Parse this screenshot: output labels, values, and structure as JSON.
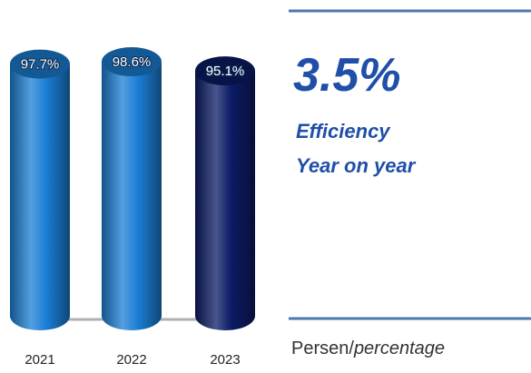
{
  "chart_data": {
    "type": "cylinder",
    "categories": [
      "2021",
      "2022",
      "2023"
    ],
    "values": [
      97.7,
      98.6,
      95.1
    ],
    "value_labels": [
      "97.7%",
      "98.6%",
      "95.1%"
    ],
    "colors": [
      "#1b7fd6",
      "#1b7fd6",
      "#0c1c66"
    ]
  },
  "panel": {
    "headline": "3.5%",
    "lines": [
      "Efficiency",
      "Year on year"
    ],
    "unit": {
      "plain": "Persen/",
      "italic": "percentage"
    }
  }
}
